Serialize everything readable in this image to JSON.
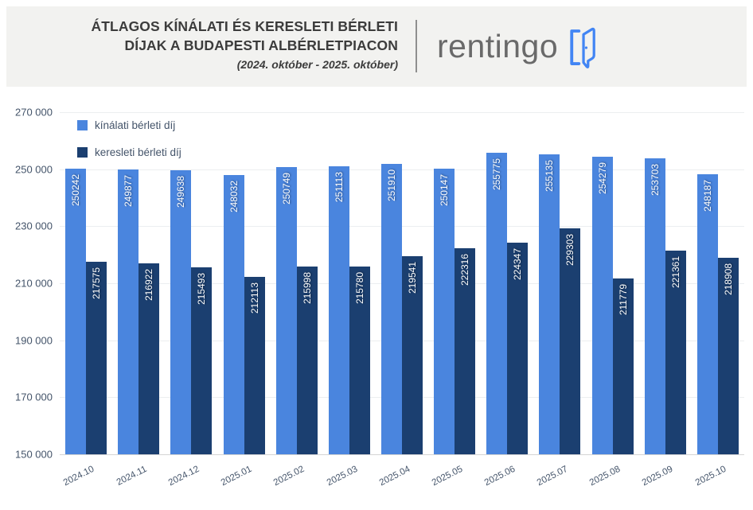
{
  "header": {
    "title_line1": "ÁTLAGOS KÍNÁLATI ÉS KERESLETI BÉRLETI",
    "title_line2": "DÍJAK A BUDAPESTI ALBÉRLETPIACON",
    "subtitle": "(2024. október - 2025. október)",
    "logo_text": "rentingo",
    "logo_icon": "open-door-icon"
  },
  "colors": {
    "offer_bar": "#4A85DE",
    "demand_bar": "#1B3F70",
    "axis_text": "#44546A",
    "gridline": "#ECEEF0",
    "baseline": "#D4D4D4",
    "header_bg": "#F2F2F0",
    "title_text": "#3C3C3C",
    "logo_text": "#6A6A6A",
    "logo_icon_blue": "#4285F4"
  },
  "chart_data": {
    "type": "bar",
    "title": "ÁTLAGOS KÍNÁLATI ÉS KERESLETI BÉRLETI DÍJAK A BUDAPESTI ALBÉRLETPIACON",
    "subtitle": "(2024. október - 2025. október)",
    "categories": [
      "2024.10",
      "2024.11",
      "2024.12",
      "2025.01",
      "2025.02",
      "2025.03",
      "2025.04",
      "2025.05",
      "2025.06",
      "2025.07",
      "2025.08",
      "2025.09",
      "2025.10"
    ],
    "series": [
      {
        "name": "kínálati bérleti díj",
        "color": "#4A85DE",
        "values": [
          250242,
          249877,
          249638,
          248032,
          250749,
          251113,
          251910,
          250147,
          255775,
          255135,
          254279,
          253703,
          248187
        ]
      },
      {
        "name": "keresleti bérleti díj",
        "color": "#1B3F70",
        "values": [
          217575,
          216922,
          215493,
          212113,
          215998,
          215780,
          219541,
          222316,
          224347,
          229303,
          211779,
          221361,
          218908
        ]
      }
    ],
    "ylim": [
      150000,
      270000
    ],
    "ytick_labels": [
      "270 000",
      "250 000",
      "230 000",
      "210 000",
      "190 000",
      "170 000",
      "150 000"
    ],
    "grid": true,
    "legend_position": "top-left",
    "value_labels": "inside-end, rotated vertical"
  }
}
